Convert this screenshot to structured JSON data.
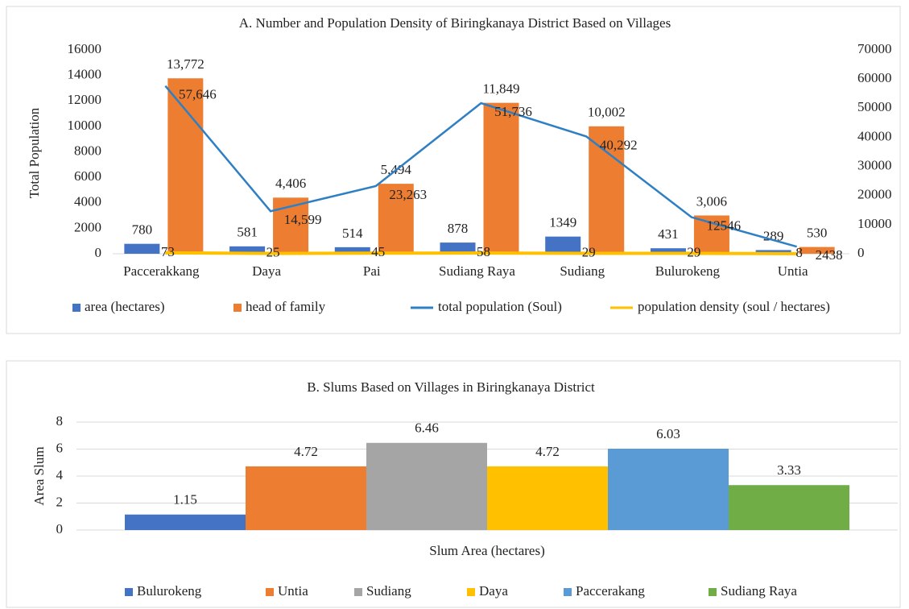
{
  "chart_data": [
    {
      "type": "combo",
      "title": "A. Number and Population Density of Biringkanaya District Based on Villages",
      "y_label": "Total Population",
      "categories": [
        "Paccerakkang",
        "Daya",
        "Pai",
        "Sudiang Raya",
        "Sudiang",
        "Bulurokeng",
        "Untia"
      ],
      "series": [
        {
          "name": "area (hectares)",
          "type": "bar",
          "color": "#4472c4",
          "values": [
            780,
            581,
            514,
            878,
            1349,
            431,
            289
          ]
        },
        {
          "name": "head of family",
          "type": "bar",
          "color": "#ed7d31",
          "values": [
            13772,
            4406,
            5494,
            11849,
            10002,
            3006,
            530
          ],
          "value_labels": [
            "13,772",
            "4,406",
            "5,494",
            "11,849",
            "10,002",
            "3,006",
            "530"
          ]
        },
        {
          "name": "total population (Soul)",
          "type": "line",
          "axis": "y2",
          "color": "#2e7fc4",
          "values": [
            57646,
            14599,
            23263,
            51736,
            40292,
            12546,
            2438
          ],
          "value_labels": [
            "57,646",
            "14,599",
            "23,263",
            "51,736",
            "40,292",
            "12546",
            "2438"
          ]
        },
        {
          "name": "population density (soul / hectares)",
          "type": "line",
          "color": "#ffc000",
          "values": [
            73,
            25,
            45,
            58,
            29,
            29,
            8
          ]
        }
      ],
      "ylim": [
        0,
        16000
      ],
      "yticks": [
        0,
        2000,
        4000,
        6000,
        8000,
        10000,
        12000,
        14000,
        16000
      ],
      "y2lim": [
        0,
        70000
      ],
      "y2ticks": [
        0,
        10000,
        20000,
        30000,
        40000,
        50000,
        60000,
        70000
      ],
      "grid": false,
      "legend": "bottom"
    },
    {
      "type": "bar",
      "title": "B. Slums Based on Villages in Biringkanaya District",
      "y_label": "Area Slum",
      "categories": [
        "Slum Area (hectares)"
      ],
      "series": [
        {
          "name": "Bulurokeng",
          "color": "#4472c4",
          "values": [
            1.15
          ]
        },
        {
          "name": "Untia",
          "color": "#ed7d31",
          "values": [
            4.72
          ]
        },
        {
          "name": "Sudiang",
          "color": "#a5a5a5",
          "values": [
            6.46
          ]
        },
        {
          "name": "Daya",
          "color": "#ffc000",
          "values": [
            4.72
          ]
        },
        {
          "name": "Paccerakang",
          "color": "#5b9bd5",
          "values": [
            6.03
          ]
        },
        {
          "name": "Sudiang Raya",
          "color": "#70ad47",
          "values": [
            3.33
          ]
        }
      ],
      "ylim": [
        0,
        8
      ],
      "yticks": [
        0,
        2,
        4,
        6,
        8
      ],
      "grid": true,
      "legend": "bottom"
    }
  ]
}
